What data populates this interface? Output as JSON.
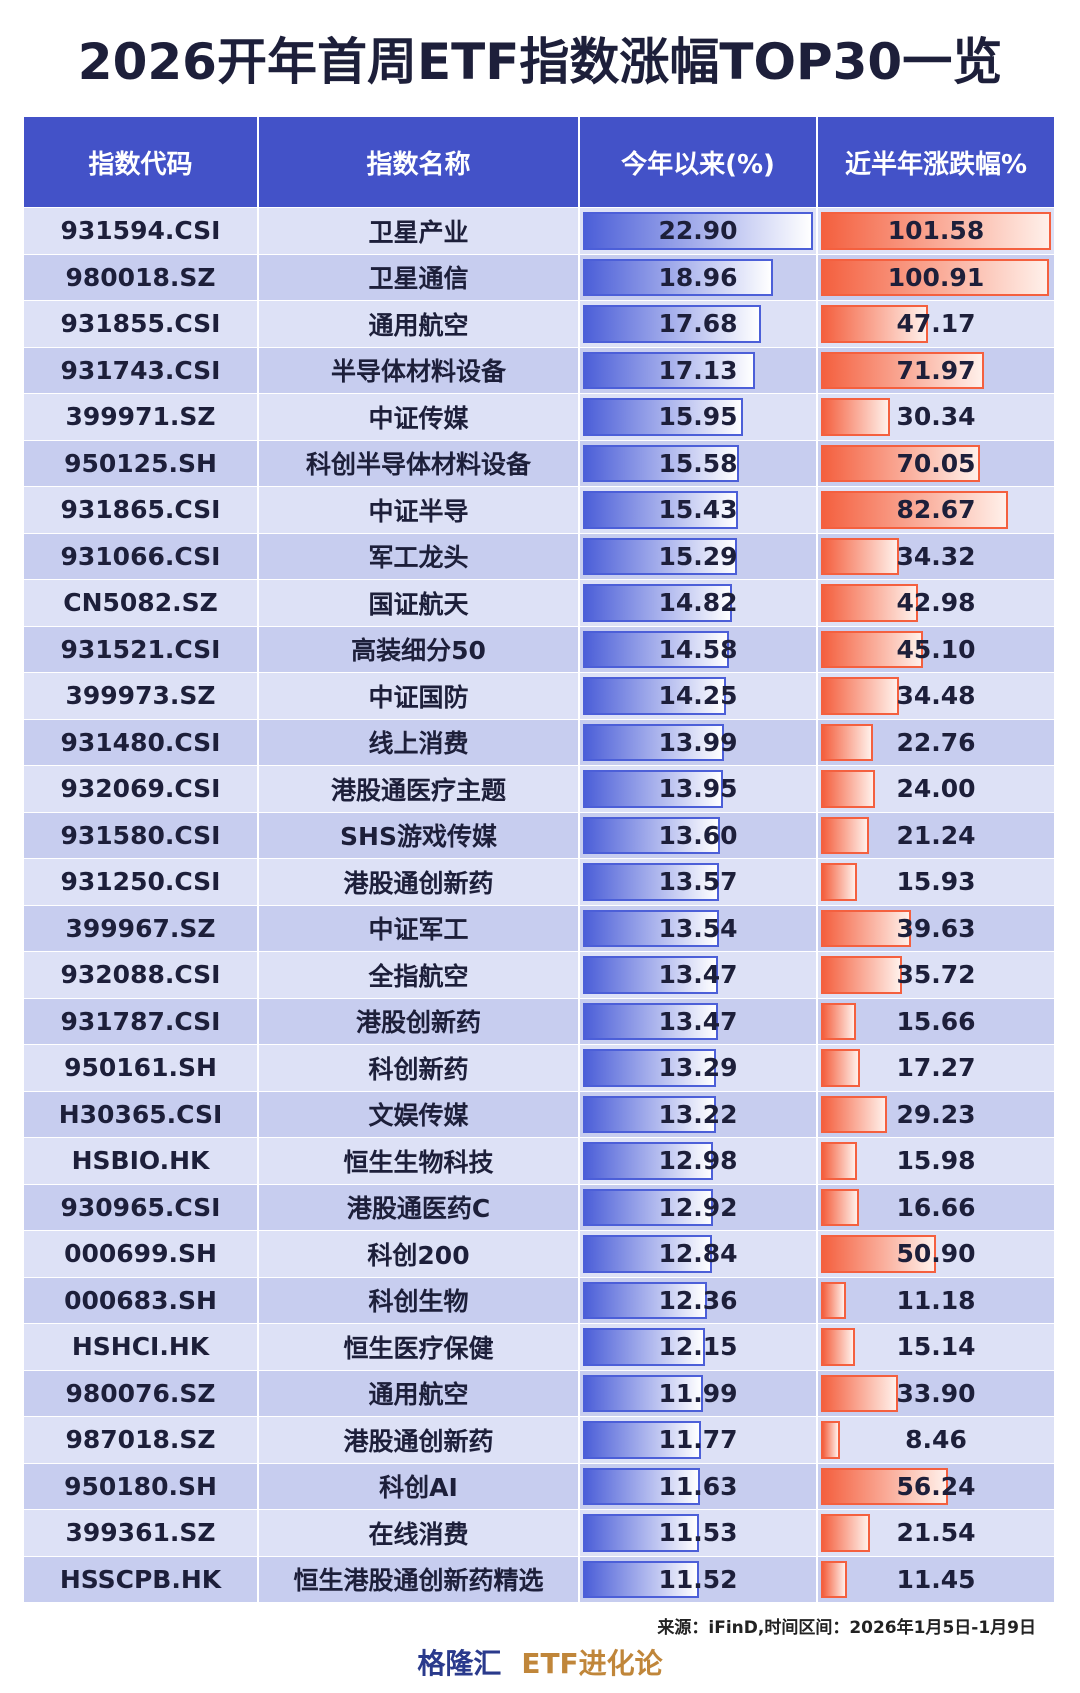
{
  "title": "2026开年首周ETF指数涨幅TOP30一览",
  "table": {
    "columns": [
      "指数代码",
      "指数名称",
      "今年以来(%)",
      "近半年涨跌幅%"
    ],
    "rows": [
      [
        "931594.CSI",
        "卫星产业",
        {
          "value": 22.9,
          "label": "22.90"
        },
        {
          "value": 101.58,
          "label": "101.58"
        }
      ],
      [
        "980018.SZ",
        "卫星通信",
        {
          "value": 18.96,
          "label": "18.96"
        },
        {
          "value": 100.91,
          "label": "100.91"
        }
      ],
      [
        "931855.CSI",
        "通用航空",
        {
          "value": 17.68,
          "label": "17.68"
        },
        {
          "value": 47.17,
          "label": "47.17"
        }
      ],
      [
        "931743.CSI",
        "半导体材料设备",
        {
          "value": 17.13,
          "label": "17.13"
        },
        {
          "value": 71.97,
          "label": "71.97"
        }
      ],
      [
        "399971.SZ",
        "中证传媒",
        {
          "value": 15.95,
          "label": "15.95"
        },
        {
          "value": 30.34,
          "label": "30.34"
        }
      ],
      [
        "950125.SH",
        "科创半导体材料设备",
        {
          "value": 15.58,
          "label": "15.58"
        },
        {
          "value": 70.05,
          "label": "70.05"
        }
      ],
      [
        "931865.CSI",
        "中证半导",
        {
          "value": 15.43,
          "label": "15.43"
        },
        {
          "value": 82.67,
          "label": "82.67"
        }
      ],
      [
        "931066.CSI",
        "军工龙头",
        {
          "value": 15.29,
          "label": "15.29"
        },
        {
          "value": 34.32,
          "label": "34.32"
        }
      ],
      [
        "CN5082.SZ",
        "国证航天",
        {
          "value": 14.82,
          "label": "14.82"
        },
        {
          "value": 42.98,
          "label": "42.98"
        }
      ],
      [
        "931521.CSI",
        "高装细分50",
        {
          "value": 14.58,
          "label": "14.58"
        },
        {
          "value": 45.1,
          "label": "45.10"
        }
      ],
      [
        "399973.SZ",
        "中证国防",
        {
          "value": 14.25,
          "label": "14.25"
        },
        {
          "value": 34.48,
          "label": "34.48"
        }
      ],
      [
        "931480.CSI",
        "线上消费",
        {
          "value": 13.99,
          "label": "13.99"
        },
        {
          "value": 22.76,
          "label": "22.76"
        }
      ],
      [
        "932069.CSI",
        "港股通医疗主题",
        {
          "value": 13.95,
          "label": "13.95"
        },
        {
          "value": 24.0,
          "label": "24.00"
        }
      ],
      [
        "931580.CSI",
        "SHS游戏传媒",
        {
          "value": 13.6,
          "label": "13.60"
        },
        {
          "value": 21.24,
          "label": "21.24"
        }
      ],
      [
        "931250.CSI",
        "港股通创新药",
        {
          "value": 13.57,
          "label": "13.57"
        },
        {
          "value": 15.93,
          "label": "15.93"
        }
      ],
      [
        "399967.SZ",
        "中证军工",
        {
          "value": 13.54,
          "label": "13.54"
        },
        {
          "value": 39.63,
          "label": "39.63"
        }
      ],
      [
        "932088.CSI",
        "全指航空",
        {
          "value": 13.47,
          "label": "13.47"
        },
        {
          "value": 35.72,
          "label": "35.72"
        }
      ],
      [
        "931787.CSI",
        "港股创新药",
        {
          "value": 13.47,
          "label": "13.47"
        },
        {
          "value": 15.66,
          "label": "15.66"
        }
      ],
      [
        "950161.SH",
        "科创新药",
        {
          "value": 13.29,
          "label": "13.29"
        },
        {
          "value": 17.27,
          "label": "17.27"
        }
      ],
      [
        "H30365.CSI",
        "文娱传媒",
        {
          "value": 13.22,
          "label": "13.22"
        },
        {
          "value": 29.23,
          "label": "29.23"
        }
      ],
      [
        "HSBIO.HK",
        "恒生生物科技",
        {
          "value": 12.98,
          "label": "12.98"
        },
        {
          "value": 15.98,
          "label": "15.98"
        }
      ],
      [
        "930965.CSI",
        "港股通医药C",
        {
          "value": 12.92,
          "label": "12.92"
        },
        {
          "value": 16.66,
          "label": "16.66"
        }
      ],
      [
        "000699.SH",
        "科创200",
        {
          "value": 12.84,
          "label": "12.84"
        },
        {
          "value": 50.9,
          "label": "50.90"
        }
      ],
      [
        "000683.SH",
        "科创生物",
        {
          "value": 12.36,
          "label": "12.36"
        },
        {
          "value": 11.18,
          "label": "11.18"
        }
      ],
      [
        "HSHCI.HK",
        "恒生医疗保健",
        {
          "value": 12.15,
          "label": "12.15"
        },
        {
          "value": 15.14,
          "label": "15.14"
        }
      ],
      [
        "980076.SZ",
        "通用航空",
        {
          "value": 11.99,
          "label": "11.99"
        },
        {
          "value": 33.9,
          "label": "33.90"
        }
      ],
      [
        "987018.SZ",
        "港股通创新药",
        {
          "value": 11.77,
          "label": "11.77"
        },
        {
          "value": 8.46,
          "label": "8.46"
        }
      ],
      [
        "950180.SH",
        "科创AI",
        {
          "value": 11.63,
          "label": "11.63"
        },
        {
          "value": 56.24,
          "label": "56.24"
        }
      ],
      [
        "399361.SZ",
        "在线消费",
        {
          "value": 11.53,
          "label": "11.53"
        },
        {
          "value": 21.54,
          "label": "21.54"
        }
      ],
      [
        "HSSCPB.HK",
        "恒生港股通创新药精选",
        {
          "value": 11.52,
          "label": "11.52"
        },
        {
          "value": 11.45,
          "label": "11.45"
        }
      ]
    ]
  },
  "source": "来源：iFinD,时间区间：2026年1月5日-1月9日",
  "footer": {
    "brand": "格隆汇",
    "channel": "ETF进化论"
  }
}
